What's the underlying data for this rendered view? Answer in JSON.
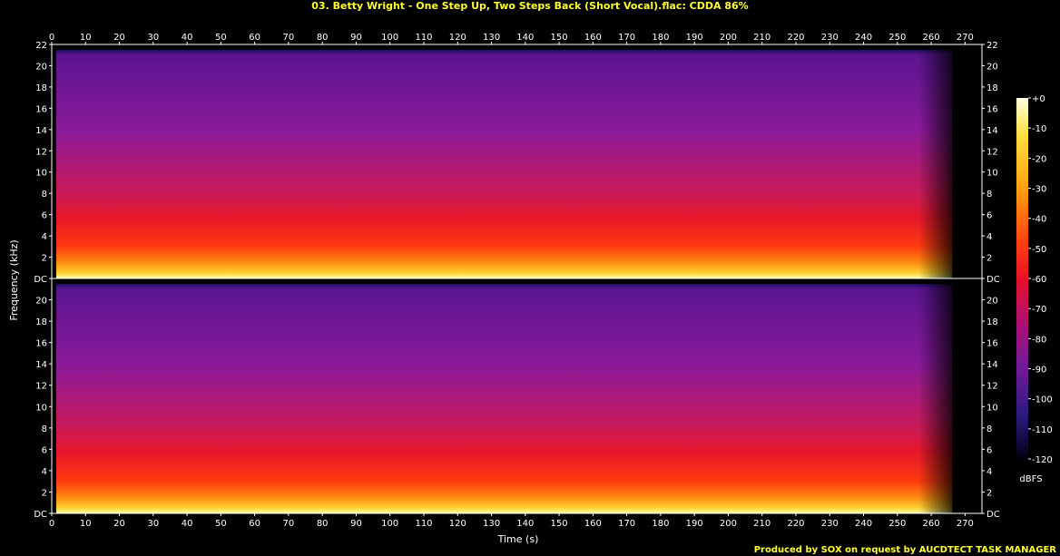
{
  "chart_data": {
    "type": "heatmap",
    "title": "03. Betty Wright - One Step Up, Two Steps Back (Short Vocal).flac: CDDA 86%",
    "xlabel": "Time (s)",
    "ylabel": "Frequency (kHz)",
    "xlim": [
      0,
      275
    ],
    "ylim": [
      0,
      22
    ],
    "x_ticks": [
      0,
      10,
      20,
      30,
      40,
      50,
      60,
      70,
      80,
      90,
      100,
      110,
      120,
      130,
      140,
      150,
      160,
      170,
      180,
      190,
      200,
      210,
      220,
      230,
      240,
      250,
      260,
      270
    ],
    "y_ticks": [
      "DC",
      "2",
      "4",
      "6",
      "8",
      "10",
      "12",
      "14",
      "16",
      "18",
      "20",
      "22"
    ],
    "channels": 2,
    "colorbar": {
      "label": "dBFS",
      "ticks": [
        "+0",
        "-10",
        "-20",
        "-30",
        "-40",
        "-50",
        "-60",
        "-70",
        "-80",
        "-90",
        "-100",
        "-110",
        "-120"
      ],
      "range": [
        -120,
        0
      ]
    },
    "audio_end_s": 263,
    "lowpass_cutoff_khz": 21.5
  },
  "footer": "Produced by SOX on request by AUCDTECT TASK MANAGER",
  "colors": {
    "title": "#ffff33",
    "background": "#000000",
    "axis": "#ffffff"
  }
}
